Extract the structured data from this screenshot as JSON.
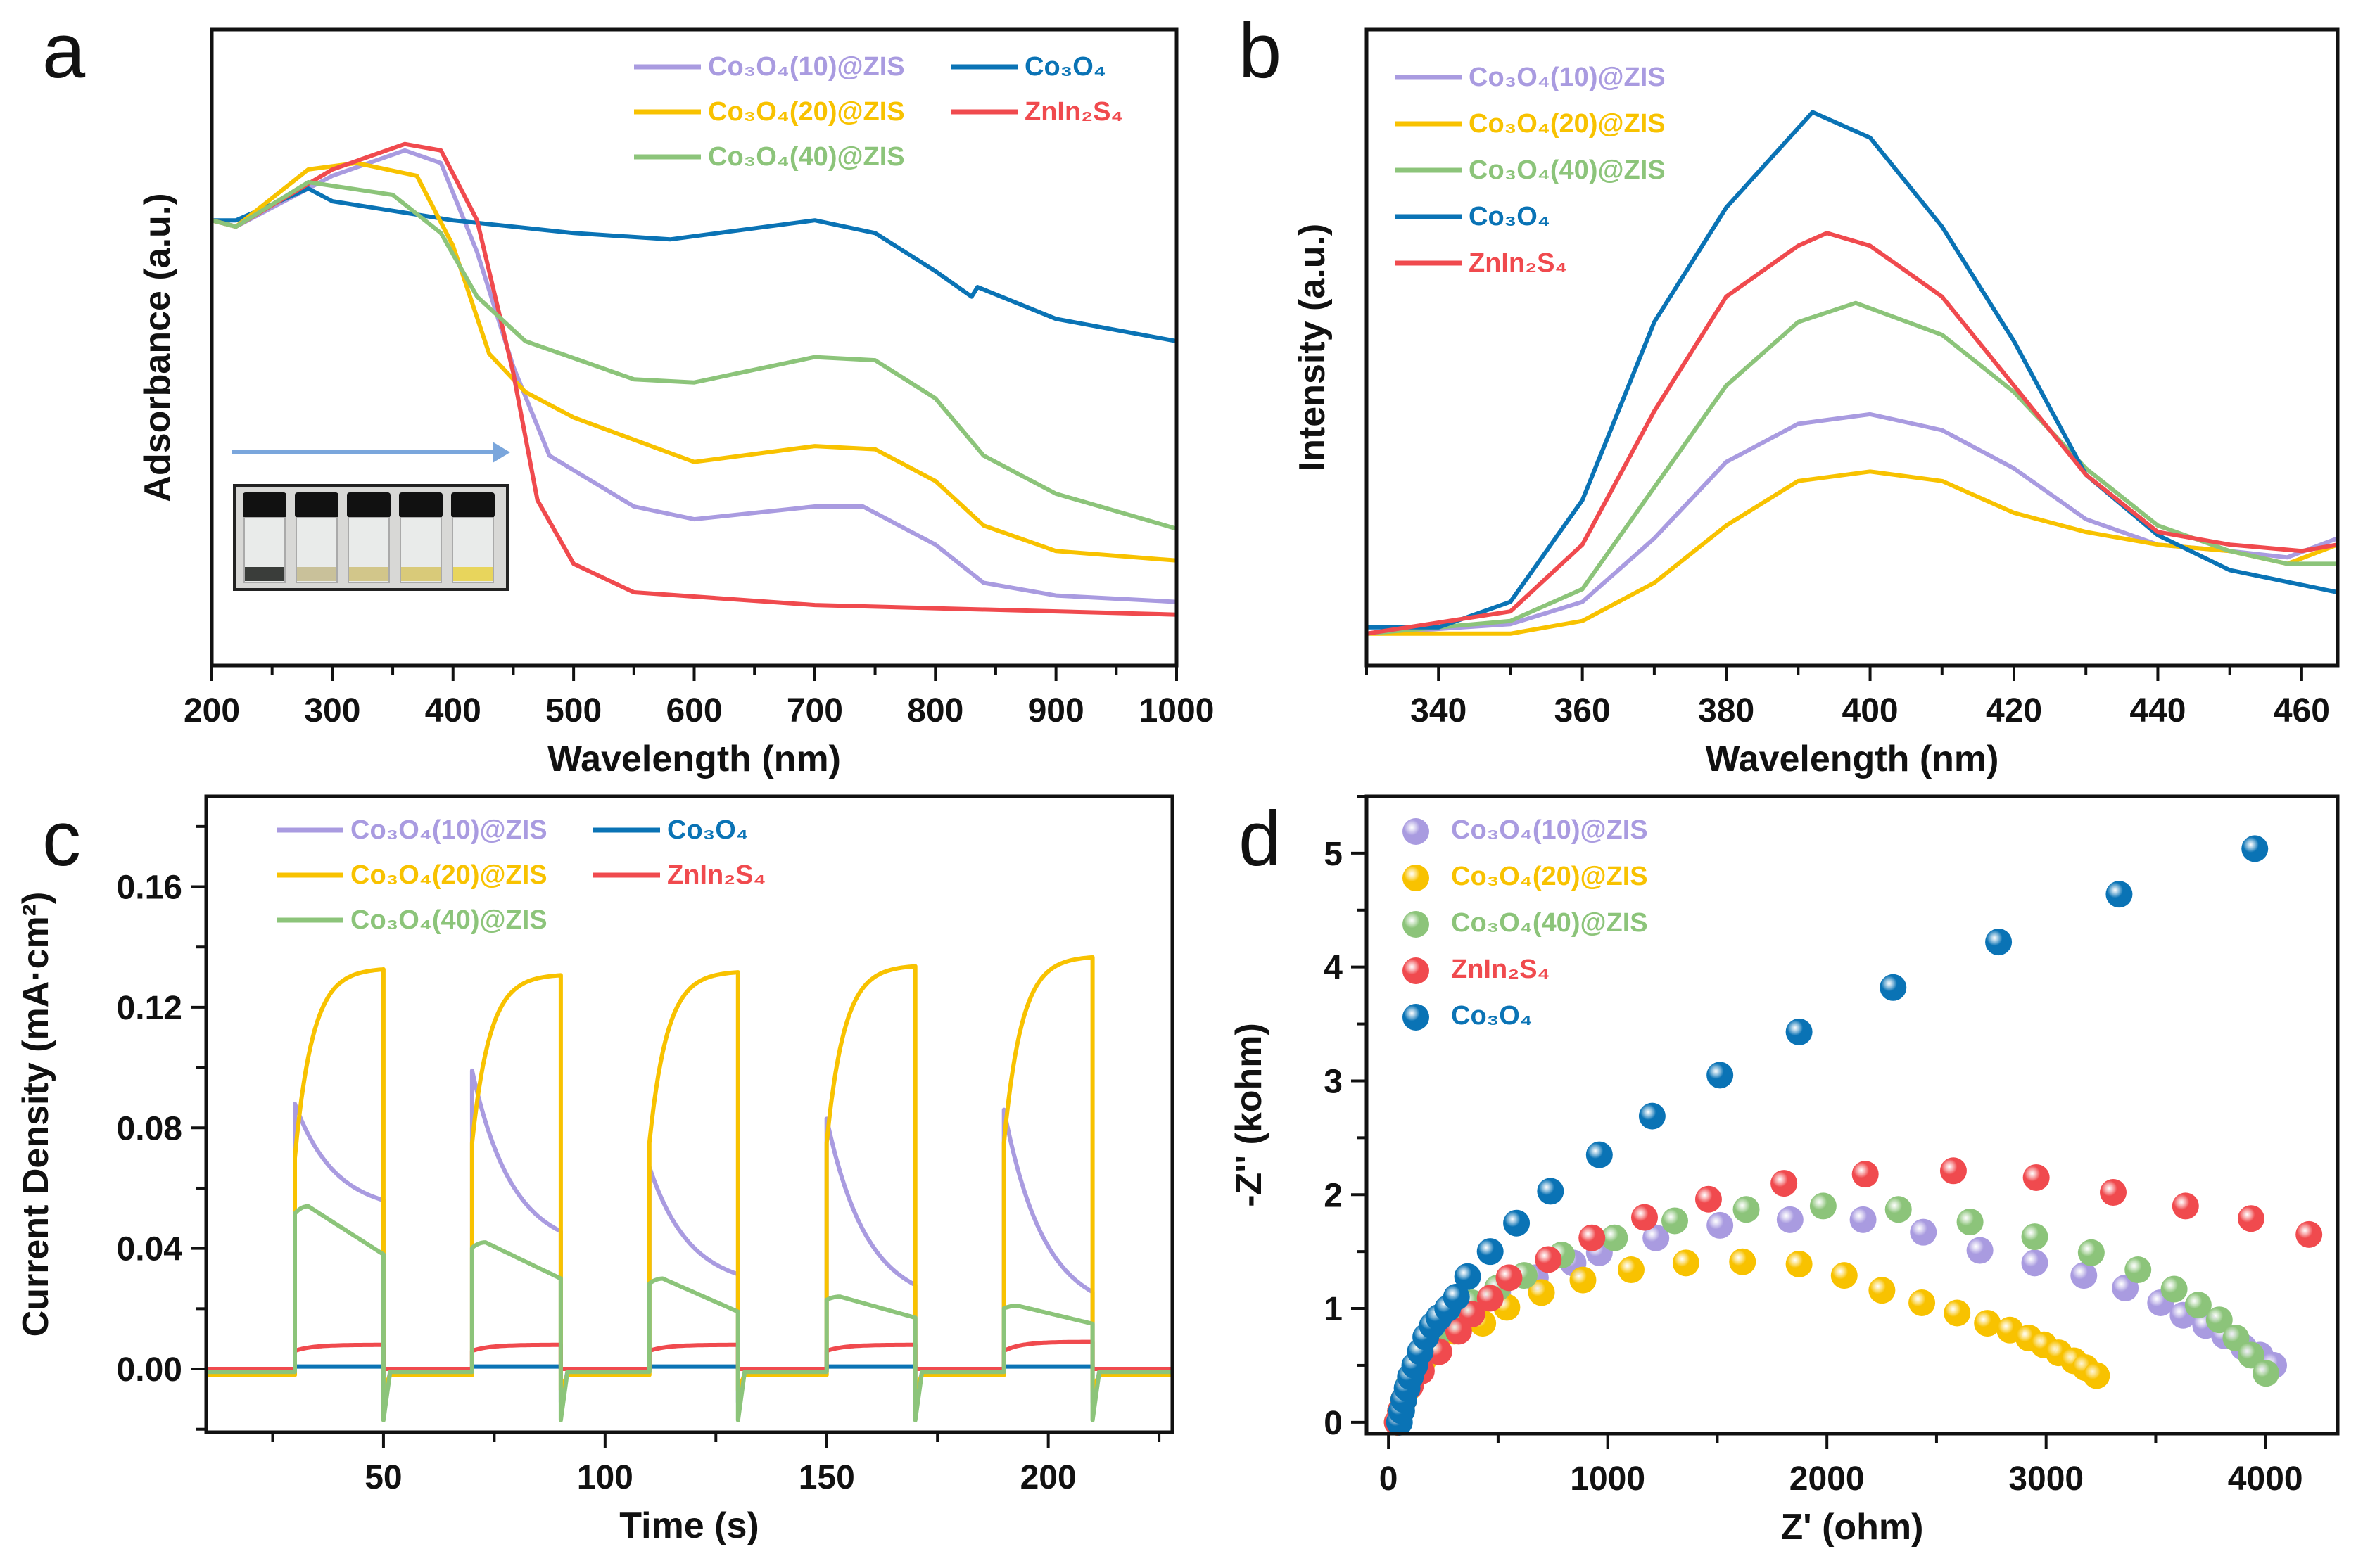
{
  "colors": {
    "c10": "#a99be0",
    "c20": "#f8c200",
    "c40": "#8cc47a",
    "co3o4": "#0a73b5",
    "zis": "#f04a4e"
  },
  "chart_data": [
    {
      "panel": "a",
      "type": "line",
      "xlabel": "Wavelength (nm)",
      "ylabel": "Adsorbance (a.u.)",
      "xlim": [
        200,
        1000
      ],
      "ylim": [
        0,
        1
      ],
      "xticks": [
        200,
        300,
        400,
        500,
        600,
        700,
        800,
        900,
        1000
      ],
      "xminor": 50,
      "legend_layout": "two-column",
      "legend_placement": "top-right",
      "inset": "photo of five sample vials with an arrow above",
      "series": [
        {
          "name": "Co₃O₄(10)@ZIS",
          "color": "c10",
          "x": [
            200,
            220,
            300,
            360,
            390,
            420,
            450,
            480,
            550,
            600,
            700,
            740,
            800,
            840,
            900,
            1000
          ],
          "y": [
            0.7,
            0.69,
            0.77,
            0.81,
            0.79,
            0.65,
            0.47,
            0.33,
            0.25,
            0.23,
            0.25,
            0.25,
            0.19,
            0.13,
            0.11,
            0.1
          ]
        },
        {
          "name": "Co₃O₄",
          "color": "co3o4",
          "x": [
            200,
            220,
            280,
            300,
            400,
            500,
            580,
            700,
            750,
            800,
            830,
            835,
            900,
            1000
          ],
          "y": [
            0.7,
            0.7,
            0.75,
            0.73,
            0.7,
            0.68,
            0.67,
            0.7,
            0.68,
            0.62,
            0.58,
            0.595,
            0.545,
            0.51
          ]
        },
        {
          "name": "Co₃O₄(20)@ZIS",
          "color": "c20",
          "x": [
            200,
            220,
            280,
            320,
            370,
            400,
            430,
            460,
            500,
            600,
            700,
            750,
            800,
            840,
            900,
            1000
          ],
          "y": [
            0.7,
            0.69,
            0.78,
            0.79,
            0.77,
            0.66,
            0.49,
            0.43,
            0.39,
            0.32,
            0.345,
            0.34,
            0.29,
            0.22,
            0.18,
            0.165
          ]
        },
        {
          "name": "ZnIn₂S₄",
          "color": "zis",
          "x": [
            200,
            220,
            300,
            360,
            390,
            420,
            450,
            470,
            500,
            550,
            700,
            1000
          ],
          "y": [
            0.7,
            0.69,
            0.78,
            0.82,
            0.81,
            0.7,
            0.46,
            0.26,
            0.16,
            0.115,
            0.095,
            0.08
          ]
        },
        {
          "name": "Co₃O₄(40)@ZIS",
          "color": "c40",
          "x": [
            200,
            220,
            280,
            350,
            390,
            420,
            460,
            550,
            600,
            700,
            750,
            800,
            840,
            900,
            1000
          ],
          "y": [
            0.7,
            0.69,
            0.76,
            0.74,
            0.68,
            0.58,
            0.51,
            0.45,
            0.445,
            0.485,
            0.48,
            0.42,
            0.33,
            0.27,
            0.215
          ]
        }
      ]
    },
    {
      "panel": "b",
      "type": "line",
      "xlabel": "Wavelength (nm)",
      "ylabel": "Intensity (a.u.)",
      "xlim": [
        330,
        465
      ],
      "ylim": [
        0,
        1
      ],
      "xticks": [
        340,
        360,
        380,
        400,
        420,
        440,
        460
      ],
      "xminor": 10,
      "legend_layout": "one-column",
      "legend_placement": "top-left",
      "series": [
        {
          "name": "Co₃O₄(10)@ZIS",
          "color": "c10",
          "x": [
            330,
            350,
            360,
            370,
            380,
            390,
            400,
            410,
            420,
            430,
            440,
            450,
            458,
            465
          ],
          "y": [
            0.05,
            0.065,
            0.1,
            0.2,
            0.32,
            0.38,
            0.395,
            0.37,
            0.31,
            0.23,
            0.19,
            0.18,
            0.17,
            0.2
          ]
        },
        {
          "name": "Co₃O₄(20)@ZIS",
          "color": "c20",
          "x": [
            330,
            350,
            360,
            370,
            380,
            390,
            400,
            410,
            420,
            430,
            440,
            450,
            458,
            465
          ],
          "y": [
            0.05,
            0.05,
            0.07,
            0.13,
            0.22,
            0.29,
            0.305,
            0.29,
            0.24,
            0.21,
            0.19,
            0.18,
            0.16,
            0.19
          ]
        },
        {
          "name": "Co₃O₄(40)@ZIS",
          "color": "c40",
          "x": [
            330,
            350,
            360,
            370,
            380,
            390,
            398,
            410,
            420,
            430,
            440,
            450,
            458,
            465
          ],
          "y": [
            0.05,
            0.07,
            0.12,
            0.28,
            0.44,
            0.54,
            0.57,
            0.52,
            0.43,
            0.31,
            0.22,
            0.18,
            0.16,
            0.16
          ]
        },
        {
          "name": "Co₃O₄",
          "color": "co3o4",
          "x": [
            330,
            340,
            350,
            360,
            370,
            380,
            392,
            400,
            410,
            420,
            430,
            440,
            450,
            465
          ],
          "y": [
            0.06,
            0.06,
            0.1,
            0.26,
            0.54,
            0.72,
            0.87,
            0.83,
            0.69,
            0.51,
            0.3,
            0.205,
            0.15,
            0.115
          ]
        },
        {
          "name": "ZnIn₂S₄",
          "color": "zis",
          "x": [
            330,
            350,
            360,
            370,
            380,
            390,
            394,
            400,
            410,
            420,
            430,
            440,
            450,
            460,
            465
          ],
          "y": [
            0.05,
            0.085,
            0.19,
            0.4,
            0.58,
            0.66,
            0.68,
            0.66,
            0.58,
            0.44,
            0.3,
            0.21,
            0.19,
            0.18,
            0.19
          ]
        }
      ]
    },
    {
      "panel": "c",
      "type": "line",
      "xlabel": "Time (s)",
      "ylabel": "Current Density (mA·cm²)",
      "xlim": [
        10,
        228
      ],
      "ylim": [
        -0.021,
        0.19
      ],
      "xticks": [
        50,
        100,
        150,
        200
      ],
      "xminor": 25,
      "yticks": [
        0.0,
        0.04,
        0.08,
        0.12,
        0.16
      ],
      "yminor": 0.02,
      "ytick_labels": [
        "0.00",
        "0.04",
        "0.08",
        "0.12",
        "0.16"
      ],
      "legend_layout": "two-column",
      "legend_placement": "top-left",
      "light_on_periods": [
        [
          30,
          50
        ],
        [
          70,
          90
        ],
        [
          110,
          130
        ],
        [
          150,
          170
        ],
        [
          190,
          210
        ]
      ],
      "series": [
        {
          "name": "Co₃O₄(10)@ZIS",
          "color": "c10",
          "shape": "spike-decay",
          "baseline": -0.001,
          "pulses": [
            {
              "peak": 0.088,
              "end": 0.052
            },
            {
              "peak": 0.099,
              "end": 0.039
            },
            {
              "peak": 0.067,
              "end": 0.027
            },
            {
              "peak": 0.083,
              "end": 0.021
            },
            {
              "peak": 0.086,
              "end": 0.018
            }
          ],
          "off_spike": -0.01
        },
        {
          "name": "Co₃O₄",
          "color": "co3o4",
          "shape": "flat",
          "baseline": 0.0,
          "pulses": [
            {
              "peak": 0.0008,
              "end": 0.0008
            },
            {
              "peak": 0.0008,
              "end": 0.0008
            },
            {
              "peak": 0.0008,
              "end": 0.0008
            },
            {
              "peak": 0.0008,
              "end": 0.0008
            },
            {
              "peak": 0.0008,
              "end": 0.0008
            }
          ],
          "off_spike": 0
        },
        {
          "name": "Co₃O₄(20)@ZIS",
          "color": "c20",
          "shape": "rise",
          "baseline": -0.002,
          "pulses": [
            {
              "peak": 0.07,
              "end": 0.133
            },
            {
              "peak": 0.075,
              "end": 0.131
            },
            {
              "peak": 0.075,
              "end": 0.132
            },
            {
              "peak": 0.075,
              "end": 0.134
            },
            {
              "peak": 0.075,
              "end": 0.137
            }
          ],
          "off_spike": -0.005
        },
        {
          "name": "ZnIn₂S₄",
          "color": "zis",
          "shape": "rise",
          "baseline": 0.0,
          "pulses": [
            {
              "peak": 0.006,
              "end": 0.008
            },
            {
              "peak": 0.006,
              "end": 0.008
            },
            {
              "peak": 0.006,
              "end": 0.008
            },
            {
              "peak": 0.006,
              "end": 0.008
            },
            {
              "peak": 0.006,
              "end": 0.009
            }
          ],
          "off_spike": 0
        },
        {
          "name": "Co₃O₄(40)@ZIS",
          "color": "c40",
          "shape": "hump-decay",
          "baseline": -0.001,
          "pulses": [
            {
              "peak": 0.054,
              "end": 0.038
            },
            {
              "peak": 0.042,
              "end": 0.03
            },
            {
              "peak": 0.03,
              "end": 0.019
            },
            {
              "peak": 0.024,
              "end": 0.017
            },
            {
              "peak": 0.021,
              "end": 0.015
            }
          ],
          "off_spike": -0.016
        }
      ]
    },
    {
      "panel": "d",
      "type": "scatter",
      "xlabel": "Z' (ohm)",
      "ylabel": "-Z'' (kohm)",
      "xlim": [
        -100,
        4330
      ],
      "ylim": [
        -0.1,
        5.5
      ],
      "xticks": [
        0,
        1000,
        2000,
        3000,
        4000
      ],
      "xminor": 500,
      "yticks": [
        0,
        1,
        2,
        3,
        4,
        5
      ],
      "yminor": 0.5,
      "legend_layout": "one-column",
      "legend_placement": "top-left",
      "series": [
        {
          "name": "Co₃O₄(10)@ZIS",
          "color": "c10",
          "x": [
            40,
            55,
            70,
            90,
            120,
            160,
            220,
            300,
            380,
            498,
            670,
            842,
            962,
            1220,
            1512,
            1832,
            2165,
            2440,
            2698,
            2948,
            3172,
            3361,
            3522,
            3625,
            3728,
            3814,
            3900,
            3976,
            4038
          ],
          "y": [
            0,
            0.1,
            0.2,
            0.32,
            0.45,
            0.6,
            0.75,
            0.9,
            1.02,
            1.14,
            1.27,
            1.4,
            1.49,
            1.62,
            1.73,
            1.78,
            1.78,
            1.67,
            1.51,
            1.4,
            1.29,
            1.18,
            1.05,
            0.94,
            0.85,
            0.76,
            0.66,
            0.59,
            0.5
          ]
        },
        {
          "name": "Co₃O₄(20)@ZIS",
          "color": "c20",
          "x": [
            40,
            55,
            70,
            90,
            120,
            160,
            220,
            300,
            430,
            540,
            698,
            887,
            1107,
            1357,
            1615,
            1873,
            2079,
            2251,
            2433,
            2594,
            2732,
            2835,
            2921,
            2990,
            3058,
            3127,
            3179,
            3230
          ],
          "y": [
            0,
            0.1,
            0.2,
            0.3,
            0.42,
            0.55,
            0.68,
            0.8,
            0.87,
            1.01,
            1.14,
            1.25,
            1.34,
            1.4,
            1.41,
            1.39,
            1.29,
            1.16,
            1.05,
            0.96,
            0.87,
            0.81,
            0.74,
            0.68,
            0.61,
            0.54,
            0.48,
            0.41
          ]
        },
        {
          "name": "Co₃O₄(40)@ZIS",
          "color": "c40",
          "x": [
            40,
            55,
            70,
            90,
            120,
            160,
            220,
            300,
            380,
            498,
            619,
            790,
            1031,
            1306,
            1632,
            1983,
            2326,
            2653,
            2948,
            3206,
            3419,
            3584,
            3694,
            3790,
            3866,
            3935,
            4003
          ],
          "y": [
            0,
            0.1,
            0.2,
            0.32,
            0.45,
            0.6,
            0.76,
            0.92,
            1.05,
            1.18,
            1.29,
            1.47,
            1.62,
            1.77,
            1.87,
            1.9,
            1.87,
            1.76,
            1.63,
            1.49,
            1.34,
            1.17,
            1.03,
            0.9,
            0.74,
            0.59,
            0.43
          ]
        },
        {
          "name": "ZnIn₂S₄",
          "color": "zis",
          "x": [
            40,
            55,
            70,
            100,
            150,
            230,
            320,
            380,
            464,
            550,
            729,
            928,
            1168,
            1460,
            1804,
            2175,
            2577,
            2955,
            3306,
            3636,
            3935,
            4199
          ],
          "y": [
            0,
            0.1,
            0.2,
            0.32,
            0.45,
            0.62,
            0.8,
            0.95,
            1.09,
            1.27,
            1.43,
            1.62,
            1.8,
            1.96,
            2.1,
            2.18,
            2.21,
            2.15,
            2.02,
            1.9,
            1.79,
            1.65
          ]
        },
        {
          "name": "Co₃O₄",
          "color": "co3o4",
          "x": [
            50,
            60,
            70,
            85,
            100,
            120,
            145,
            170,
            200,
            230,
            270,
            310,
            361,
            464,
            584,
            739,
            962,
            1203,
            1512,
            1873,
            2302,
            2783,
            3333,
            3952
          ],
          "y": [
            0,
            0.1,
            0.2,
            0.3,
            0.4,
            0.5,
            0.62,
            0.75,
            0.85,
            0.92,
            1.0,
            1.1,
            1.28,
            1.5,
            1.75,
            2.03,
            2.35,
            2.69,
            3.05,
            3.43,
            3.82,
            4.22,
            4.64,
            5.04
          ]
        }
      ]
    }
  ],
  "panel_labels": [
    "a",
    "b",
    "c",
    "d"
  ]
}
